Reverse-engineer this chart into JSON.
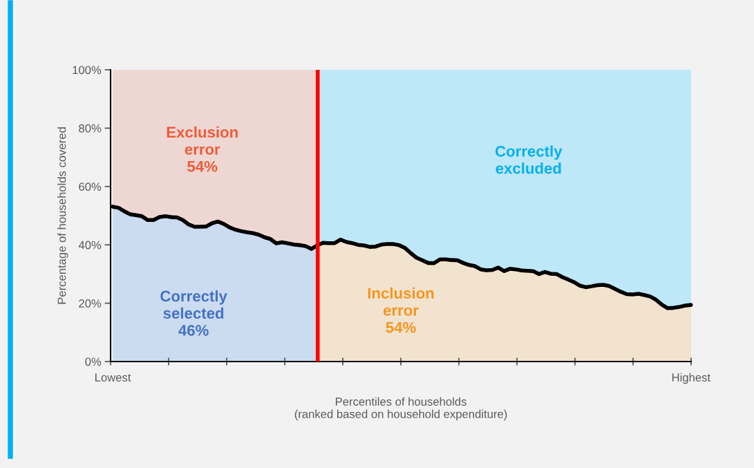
{
  "chart_data": {
    "type": "area",
    "xlabel": "Percentiles of households\n(ranked based on household expenditure)",
    "ylabel": "Percentage of households covered",
    "categories": [
      "Lowest",
      null,
      null,
      null,
      null,
      null,
      null,
      null,
      null,
      null,
      null,
      null,
      null,
      null,
      null,
      null,
      null,
      null,
      null,
      null,
      null,
      null,
      null,
      null,
      null,
      null,
      null,
      null,
      null,
      null,
      null,
      null,
      null,
      null,
      null,
      null,
      null,
      null,
      null,
      null,
      null,
      null,
      null,
      null,
      null,
      null,
      null,
      null,
      null,
      null,
      null,
      null,
      null,
      null,
      null,
      null,
      null,
      null,
      null,
      null,
      null,
      null,
      null,
      null,
      null,
      null,
      null,
      null,
      null,
      null,
      null,
      null,
      null,
      null,
      null,
      null,
      null,
      null,
      null,
      null,
      null,
      null,
      null,
      null,
      null,
      null,
      null,
      null,
      null,
      null,
      null,
      null,
      null,
      null,
      null,
      null,
      null,
      null,
      null,
      "Highest"
    ],
    "ylim": [
      0,
      100
    ],
    "yticks": [
      {
        "value": 0,
        "label": "0%"
      },
      {
        "value": 20,
        "label": "20%"
      },
      {
        "value": 40,
        "label": "40%"
      },
      {
        "value": 60,
        "label": "60%"
      },
      {
        "value": 80,
        "label": "80%"
      },
      {
        "value": 100,
        "label": "100%"
      }
    ],
    "grid": false,
    "series": [
      {
        "color": "#eed7d3",
        "values": [
          100,
          100,
          100,
          100,
          100,
          100,
          100,
          100,
          100,
          100,
          100,
          100,
          100,
          100,
          100,
          100,
          100,
          100,
          100,
          100,
          100,
          100,
          100,
          100,
          100,
          100,
          100,
          100,
          100,
          100,
          100,
          100,
          100,
          100,
          100,
          100,
          null,
          null,
          null,
          null,
          null,
          null,
          null,
          null,
          null,
          null,
          null,
          null,
          null,
          null,
          null,
          null,
          null,
          null,
          null,
          null,
          null,
          null,
          null,
          null,
          null,
          null,
          null,
          null,
          null,
          null,
          null,
          null,
          null,
          null,
          null,
          null,
          null,
          null,
          null,
          null,
          null,
          null,
          null,
          null,
          null,
          null,
          null,
          null,
          null,
          null,
          null,
          null,
          null,
          null,
          null,
          null,
          null,
          null,
          null,
          null,
          null,
          null,
          null,
          null
        ]
      },
      {
        "color": "#bee7f7",
        "values": [
          null,
          null,
          null,
          null,
          null,
          null,
          null,
          null,
          null,
          null,
          null,
          null,
          null,
          null,
          null,
          null,
          null,
          null,
          null,
          null,
          null,
          null,
          null,
          null,
          null,
          null,
          null,
          null,
          null,
          null,
          null,
          null,
          null,
          null,
          null,
          100,
          100,
          100,
          100,
          100,
          100,
          100,
          100,
          100,
          100,
          100,
          100,
          100,
          100,
          100,
          100,
          100,
          100,
          100,
          100,
          100,
          100,
          100,
          100,
          100,
          100,
          100,
          100,
          100,
          100,
          100,
          100,
          100,
          100,
          100,
          100,
          100,
          100,
          100,
          100,
          100,
          100,
          100,
          100,
          100,
          100,
          100,
          100,
          100,
          100,
          100,
          100,
          100,
          100,
          100,
          100,
          100,
          100,
          100,
          100,
          100,
          100,
          100,
          100,
          100
        ]
      },
      {
        "color": "#cbdbf0",
        "values": [
          53.1,
          52.7,
          51.5,
          50.5,
          50.2,
          49.8,
          48.5,
          48.5,
          49.5,
          49.8,
          49.5,
          49.4,
          48.5,
          47.0,
          46.2,
          46.2,
          46.3,
          47.4,
          48.0,
          47.2,
          46.0,
          45.2,
          44.7,
          44.3,
          44.0,
          43.5,
          42.6,
          42.0,
          40.5,
          40.9,
          40.5,
          40.1,
          39.9,
          39.6,
          38.6,
          39.8,
          null,
          null,
          null,
          null,
          null,
          null,
          null,
          null,
          null,
          null,
          null,
          null,
          null,
          null,
          null,
          null,
          null,
          null,
          null,
          null,
          null,
          null,
          null,
          null,
          null,
          null,
          null,
          null,
          null,
          null,
          null,
          null,
          null,
          null,
          null,
          null,
          null,
          null,
          null,
          null,
          null,
          null,
          null,
          null,
          null,
          null,
          null,
          null,
          null,
          null,
          null,
          null,
          null,
          null,
          null,
          null,
          null,
          null,
          null,
          null,
          null,
          null,
          null,
          null
        ]
      },
      {
        "color": "#f2e3cf",
        "values": [
          null,
          null,
          null,
          null,
          null,
          null,
          null,
          null,
          null,
          null,
          null,
          null,
          null,
          null,
          null,
          null,
          null,
          null,
          null,
          null,
          null,
          null,
          null,
          null,
          null,
          null,
          null,
          null,
          null,
          null,
          null,
          null,
          null,
          null,
          null,
          39.8,
          40.7,
          40.6,
          40.6,
          41.8,
          41.0,
          40.6,
          40.0,
          39.8,
          39.3,
          39.4,
          40.1,
          40.3,
          40.3,
          39.9,
          39.0,
          37.2,
          35.6,
          34.7,
          33.8,
          33.7,
          35.0,
          35.0,
          34.8,
          34.7,
          33.8,
          33.1,
          32.7,
          31.6,
          31.3,
          31.4,
          32.2,
          31.0,
          31.8,
          31.6,
          31.2,
          31.1,
          31.0,
          30.0,
          30.7,
          30.1,
          30.0,
          28.9,
          28.1,
          27.2,
          26.0,
          25.5,
          25.8,
          26.2,
          26.3,
          25.9,
          24.9,
          23.9,
          23.1,
          23.0,
          23.2,
          22.8,
          22.3,
          21.2,
          19.5,
          18.3,
          18.4,
          18.7,
          19.2,
          19.4
        ]
      },
      {
        "type": "line",
        "color": "#000000",
        "line_style": "solid",
        "values": [
          53.1,
          52.7,
          51.5,
          50.5,
          50.2,
          49.8,
          48.5,
          48.5,
          49.5,
          49.8,
          49.5,
          49.4,
          48.5,
          47.0,
          46.2,
          46.2,
          46.3,
          47.4,
          48.0,
          47.2,
          46.0,
          45.2,
          44.7,
          44.3,
          44.0,
          43.5,
          42.6,
          42.0,
          40.5,
          40.9,
          40.5,
          40.1,
          39.9,
          39.6,
          38.6,
          39.8,
          40.7,
          40.6,
          40.6,
          41.8,
          41.0,
          40.6,
          40.0,
          39.8,
          39.3,
          39.4,
          40.1,
          40.3,
          40.3,
          39.9,
          39.0,
          37.2,
          35.6,
          34.7,
          33.8,
          33.7,
          35.0,
          35.0,
          34.8,
          34.7,
          33.8,
          33.1,
          32.7,
          31.6,
          31.3,
          31.4,
          32.2,
          31.0,
          31.8,
          31.6,
          31.2,
          31.1,
          31.0,
          30.0,
          30.7,
          30.1,
          30.0,
          28.9,
          28.1,
          27.2,
          26.0,
          25.5,
          25.8,
          26.2,
          26.3,
          25.9,
          24.9,
          23.9,
          23.1,
          23.0,
          23.2,
          22.8,
          22.3,
          21.2,
          19.5,
          18.3,
          18.4,
          18.7,
          19.2,
          19.4
        ]
      }
    ],
    "annotations": [
      "Exclusion\nerror\n54%",
      "Correctly\nselected\n46%",
      "Correctly\nexcluded",
      "Inclusion\nerror\n54%"
    ]
  }
}
